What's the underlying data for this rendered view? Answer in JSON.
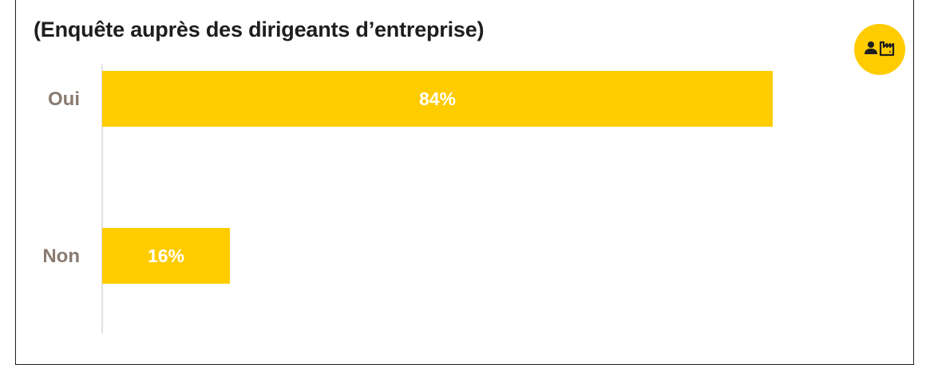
{
  "chart_data": {
    "type": "bar",
    "orientation": "horizontal",
    "title": "(Enquête auprès des dirigeants d’entreprise)",
    "categories": [
      "Oui",
      "Non"
    ],
    "values": [
      84,
      16
    ],
    "value_labels": [
      "84%",
      "16%"
    ],
    "xlim": [
      0,
      100
    ],
    "bar_color": "#ffcc00",
    "category_label_color": "#8a7a70",
    "value_label_color": "#ffffff",
    "grid": false,
    "legend": "none"
  },
  "badge": {
    "icon": "person-factory-icon",
    "color": "#ffcc00"
  }
}
